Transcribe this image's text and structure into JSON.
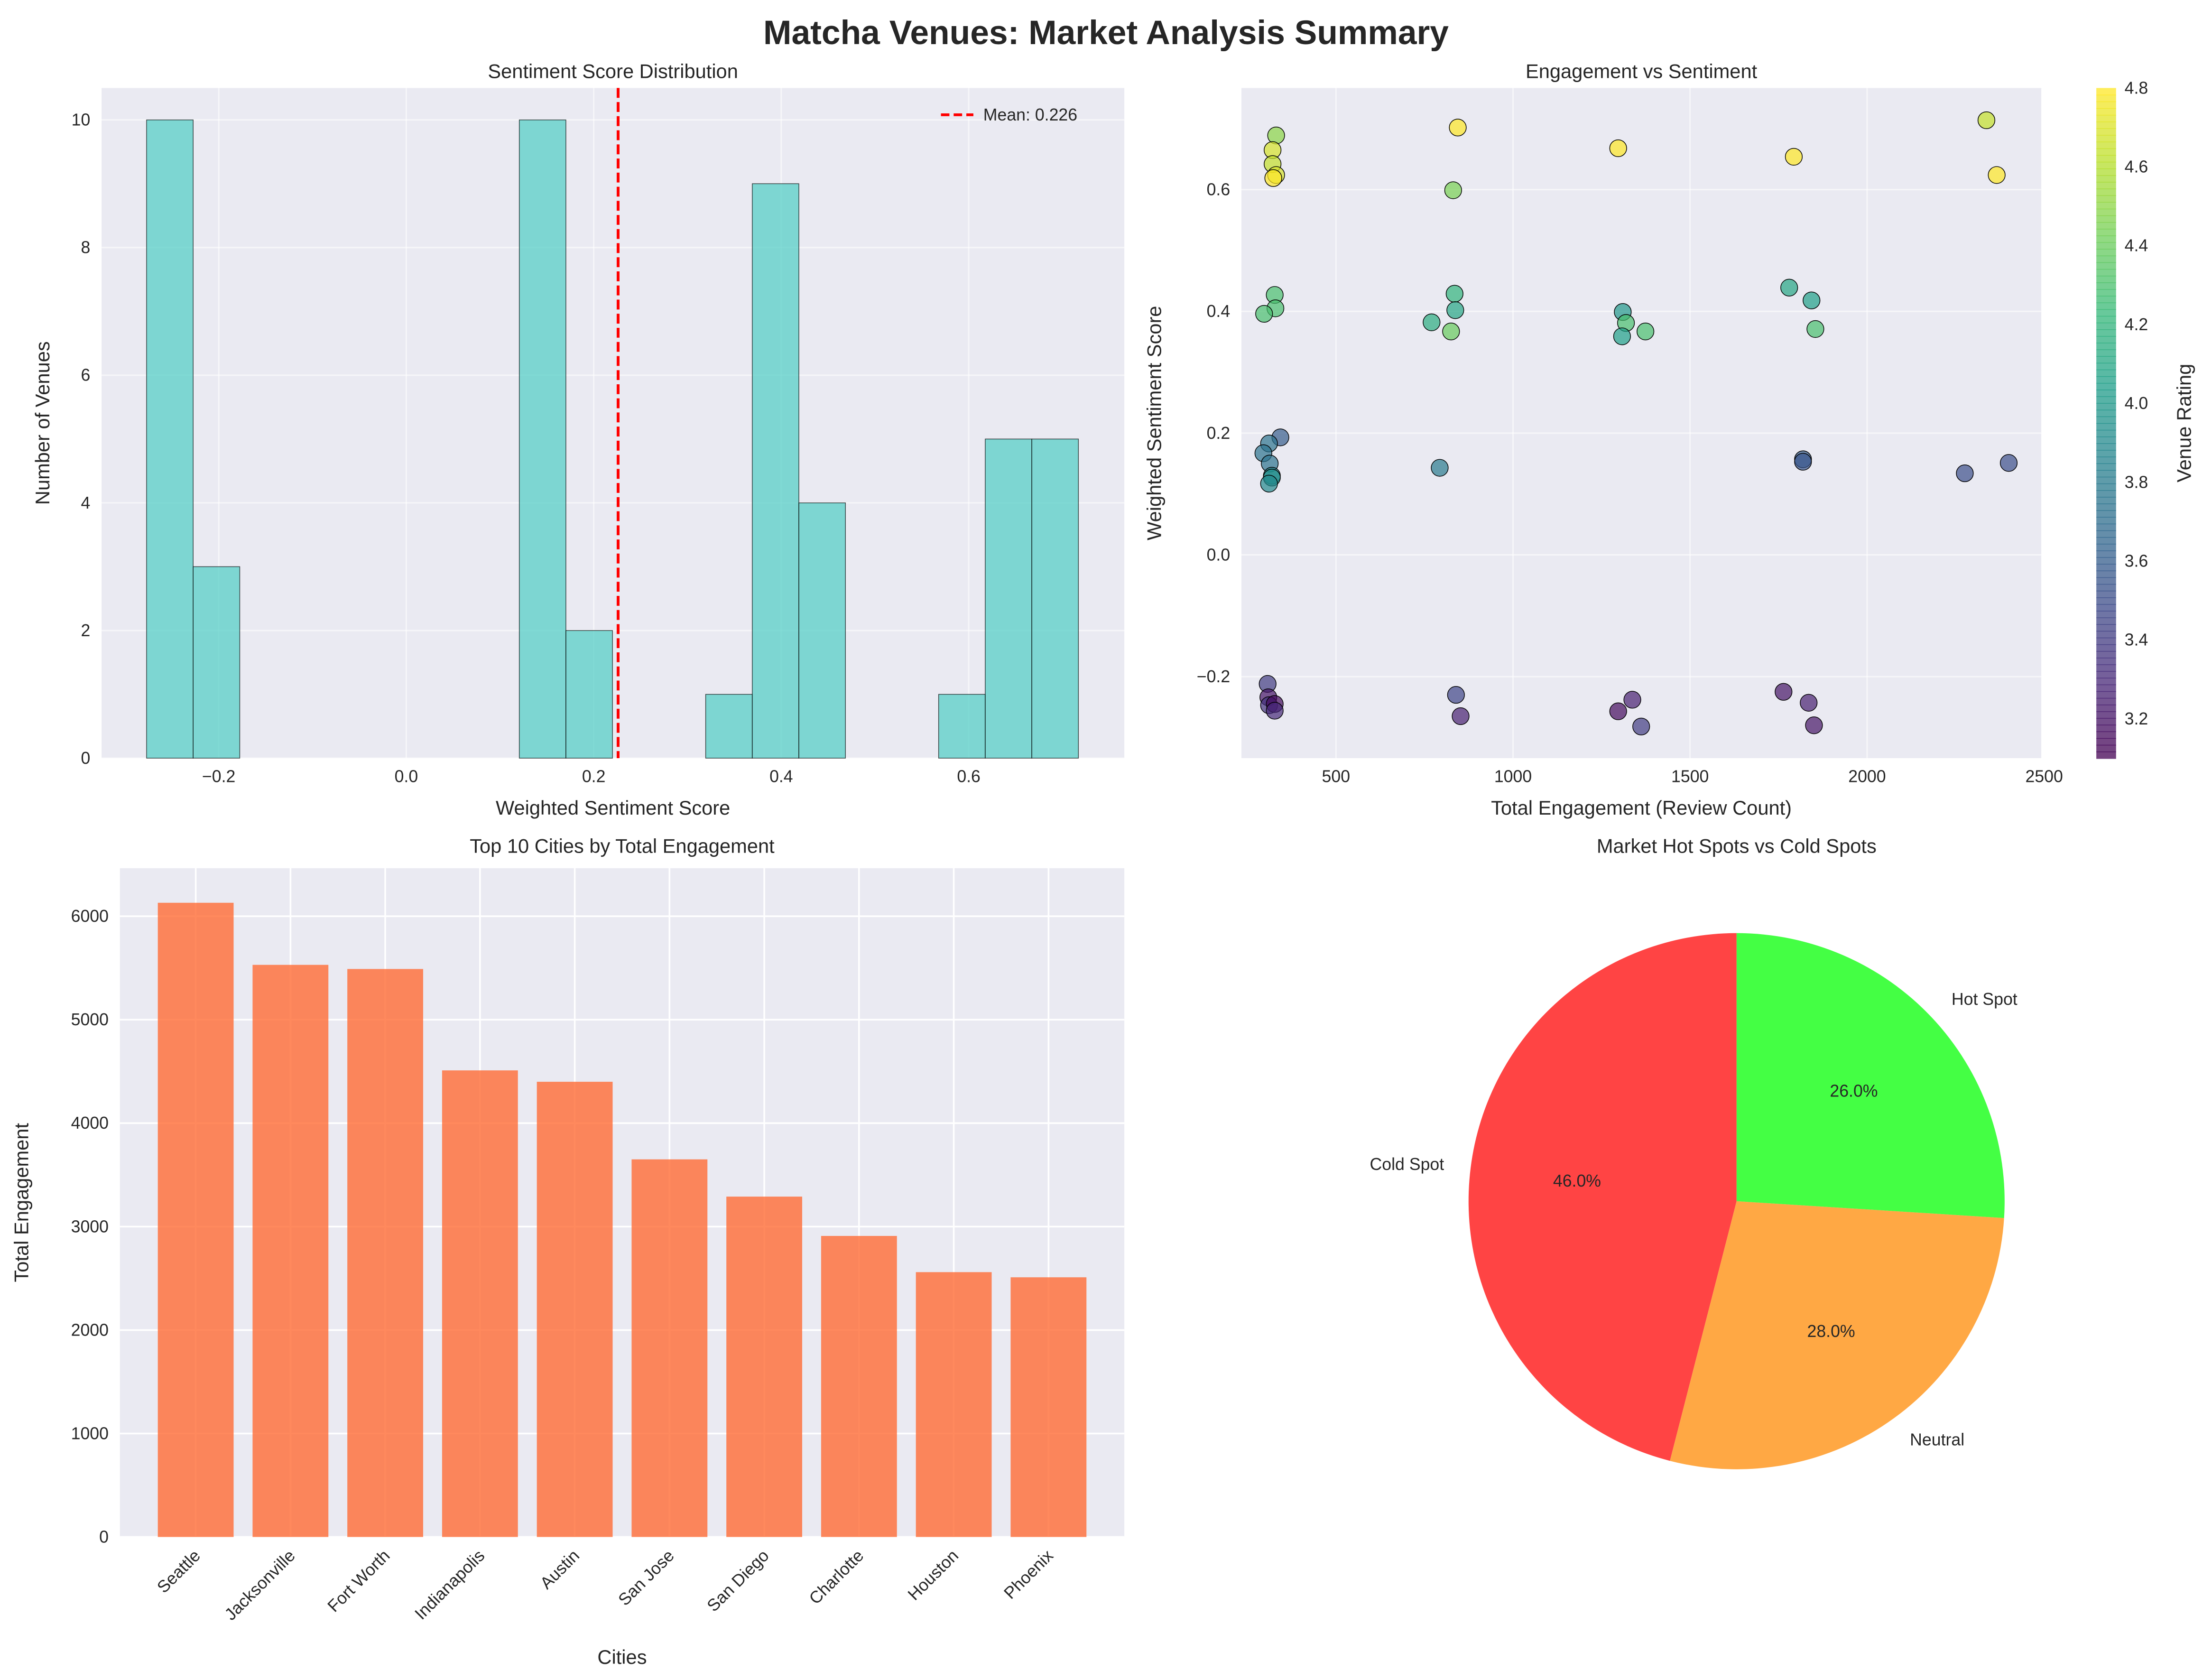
{
  "title": "Matcha Venues: Market Analysis Summary",
  "chart_data": [
    {
      "type": "bar",
      "subtype": "histogram",
      "title": "Sentiment Score Distribution",
      "xlabel": "Weighted Sentiment Score",
      "ylabel": "Number of Venues",
      "bin_start": -0.277,
      "bin_width": 0.0497,
      "counts": [
        10,
        3,
        0,
        0,
        0,
        0,
        0,
        0,
        10,
        2,
        0,
        0,
        1,
        9,
        4,
        0,
        0,
        1,
        5,
        5
      ],
      "xlim": [
        -0.325,
        0.766
      ],
      "ylim": [
        0,
        10.5
      ],
      "xticks": [
        "-0.2",
        "0.0",
        "0.2",
        "0.4",
        "0.6"
      ],
      "xtick_values": [
        -0.2,
        0,
        0.2,
        0.4,
        0.6
      ],
      "yticks": [
        "0",
        "2",
        "4",
        "6",
        "8",
        "10"
      ],
      "mean_line": {
        "value": 0.226,
        "label": "Mean: 0.226",
        "color": "#ff0000"
      },
      "legend": "top-right",
      "bar_color": "#4ecdc4",
      "grid": true
    },
    {
      "type": "scatter",
      "title": "Engagement vs Sentiment",
      "xlabel": "Total Engagement (Review Count)",
      "ylabel": "Weighted Sentiment Score",
      "colorbar_label": "Venue Rating",
      "colormap": "viridis",
      "clim": [
        3.1,
        4.8
      ],
      "colorbar_ticks": [
        "3.2",
        "3.4",
        "3.6",
        "3.8",
        "4.0",
        "4.2",
        "4.4",
        "4.6",
        "4.8"
      ],
      "xlim": [
        233,
        2492
      ],
      "ylim": [
        -0.334,
        0.767
      ],
      "xticks": [
        "500",
        "1000",
        "1500",
        "2000",
        "2500"
      ],
      "yticks": [
        "-0.2",
        "0.0",
        "0.2",
        "0.4",
        "0.6"
      ],
      "grid": true,
      "points": [
        [
          331,
          0.689,
          4.5
        ],
        [
          321,
          0.665,
          4.7
        ],
        [
          321,
          0.642,
          4.65
        ],
        [
          331,
          0.624,
          4.7
        ],
        [
          323,
          0.619,
          4.8
        ],
        [
          844,
          0.702,
          4.8
        ],
        [
          831,
          0.599,
          4.45
        ],
        [
          1297,
          0.668,
          4.8
        ],
        [
          1793,
          0.654,
          4.8
        ],
        [
          2337,
          0.714,
          4.65
        ],
        [
          2366,
          0.624,
          4.8
        ],
        [
          327,
          0.427,
          4.3
        ],
        [
          329,
          0.405,
          4.3
        ],
        [
          297,
          0.396,
          4.3
        ],
        [
          835,
          0.429,
          4.2
        ],
        [
          837,
          0.402,
          4.1
        ],
        [
          770,
          0.382,
          4.15
        ],
        [
          825,
          0.367,
          4.4
        ],
        [
          1310,
          0.399,
          4.0
        ],
        [
          1319,
          0.381,
          4.3
        ],
        [
          1308,
          0.359,
          4.05
        ],
        [
          1374,
          0.367,
          4.3
        ],
        [
          1780,
          0.439,
          4.1
        ],
        [
          1843,
          0.418,
          4.05
        ],
        [
          1854,
          0.371,
          4.3
        ],
        [
          343,
          0.193,
          3.6
        ],
        [
          311,
          0.183,
          3.75
        ],
        [
          295,
          0.167,
          3.75
        ],
        [
          313,
          0.15,
          3.75
        ],
        [
          319,
          0.13,
          3.9
        ],
        [
          319,
          0.127,
          3.95
        ],
        [
          311,
          0.117,
          3.9
        ],
        [
          793,
          0.143,
          3.8
        ],
        [
          1819,
          0.157,
          3.6
        ],
        [
          1819,
          0.153,
          3.55
        ],
        [
          2276,
          0.134,
          3.5
        ],
        [
          2400,
          0.151,
          3.5
        ],
        [
          307,
          -0.212,
          3.4
        ],
        [
          309,
          -0.234,
          3.2
        ],
        [
          311,
          -0.247,
          3.35
        ],
        [
          327,
          -0.245,
          3.15
        ],
        [
          327,
          -0.256,
          3.3
        ],
        [
          839,
          -0.23,
          3.45
        ],
        [
          852,
          -0.265,
          3.25
        ],
        [
          1297,
          -0.257,
          3.15
        ],
        [
          1337,
          -0.238,
          3.25
        ],
        [
          1362,
          -0.282,
          3.4
        ],
        [
          1764,
          -0.225,
          3.2
        ],
        [
          1835,
          -0.243,
          3.25
        ],
        [
          1850,
          -0.28,
          3.2
        ]
      ]
    },
    {
      "type": "bar",
      "title": "Top 10 Cities by Total Engagement",
      "xlabel": "Cities",
      "ylabel": "Total Engagement",
      "categories": [
        "Seattle",
        "Jacksonville",
        "Fort Worth",
        "Indianapolis",
        "Austin",
        "San Jose",
        "San Diego",
        "Charlotte",
        "Houston",
        "Phoenix"
      ],
      "values": [
        6130,
        5530,
        5490,
        4510,
        4400,
        3650,
        3290,
        2910,
        2560,
        2510
      ],
      "ylim": [
        0,
        6464
      ],
      "yticks": [
        "0",
        "1000",
        "2000",
        "3000",
        "4000",
        "5000",
        "6000"
      ],
      "bar_color": "#ff6b35",
      "grid": true
    },
    {
      "type": "pie",
      "title": "Market Hot Spots vs Cold Spots",
      "slices": [
        {
          "label": "Cold Spot",
          "value": 46.0,
          "pct": "46.0%",
          "color": "#ff4444"
        },
        {
          "label": "Neutral",
          "value": 28.0,
          "pct": "28.0%",
          "color": "#ffa844"
        },
        {
          "label": "Hot Spot",
          "value": 26.0,
          "pct": "26.0%",
          "color": "#44ff44"
        }
      ],
      "start_angle": 90
    }
  ]
}
